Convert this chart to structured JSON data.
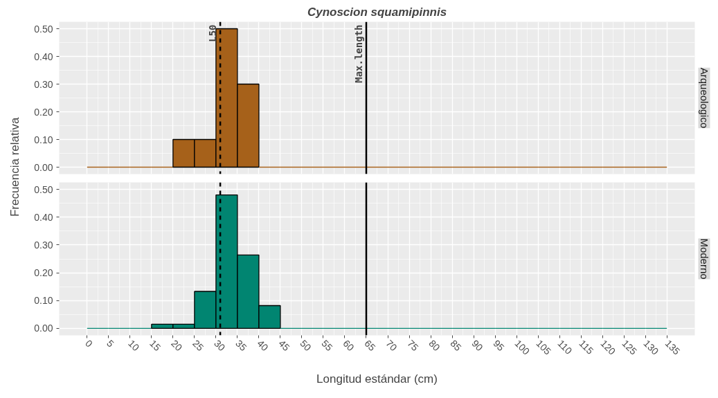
{
  "chart_data": [
    {
      "type": "histogram",
      "title": "Cynoscion squamipinnis",
      "subtitle": "Arqueologico",
      "ylabel": "Frecuencia relativa",
      "color": "#a6611a",
      "bins": [
        0,
        5,
        10,
        15,
        20,
        25,
        30,
        35,
        40,
        45,
        50,
        55,
        60,
        65,
        70,
        75,
        80,
        85,
        90,
        95,
        100,
        105,
        110,
        115,
        120,
        125,
        130,
        135
      ],
      "values": [
        0,
        0,
        0,
        0,
        0.1,
        0.1,
        0.5,
        0.3,
        0,
        0,
        0,
        0,
        0,
        0,
        0,
        0,
        0,
        0,
        0,
        0,
        0,
        0,
        0,
        0,
        0,
        0,
        0
      ],
      "xlim": [
        -6.5,
        141.5
      ],
      "ylim": [
        -0.025,
        0.525
      ],
      "xticks": [
        0,
        5,
        10,
        15,
        20,
        25,
        30,
        35,
        40,
        45,
        50,
        55,
        60,
        65,
        70,
        75,
        80,
        85,
        90,
        95,
        100,
        105,
        110,
        115,
        120,
        125,
        130,
        135
      ],
      "yticks": [
        {
          "value": 0,
          "label": "0.00"
        },
        {
          "value": 0.1,
          "label": "0.10"
        },
        {
          "value": 0.2,
          "label": "0.20"
        },
        {
          "value": 0.3,
          "label": "0.30"
        },
        {
          "value": 0.4,
          "label": "0.40"
        },
        {
          "value": 0.5,
          "label": "0.50"
        }
      ],
      "tick_labels": "y",
      "grid": true,
      "ref_lines": [
        {
          "axis": "x",
          "value": 31,
          "label": "L50",
          "line_style": "dashed"
        },
        {
          "axis": "x",
          "value": 65,
          "label": "Max.length",
          "line_style": "solid"
        }
      ]
    },
    {
      "type": "histogram",
      "subtitle": "Moderno",
      "xlabel": "Longitud estándar (cm)",
      "color": "#018571",
      "bins": [
        0,
        5,
        10,
        15,
        20,
        25,
        30,
        35,
        40,
        45,
        50,
        55,
        60,
        65,
        70,
        75,
        80,
        85,
        90,
        95,
        100,
        105,
        110,
        115,
        120,
        125,
        130,
        135
      ],
      "values": [
        0,
        0,
        0,
        0.015,
        0.015,
        0.133,
        0.48,
        0.264,
        0.082,
        0,
        0,
        0,
        0,
        0,
        0,
        0,
        0,
        0,
        0,
        0,
        0,
        0,
        0,
        0,
        0,
        0,
        0
      ],
      "xlim": [
        -6.5,
        141.5
      ],
      "ylim": [
        -0.025,
        0.525
      ],
      "xticks": [
        0,
        5,
        10,
        15,
        20,
        25,
        30,
        35,
        40,
        45,
        50,
        55,
        60,
        65,
        70,
        75,
        80,
        85,
        90,
        95,
        100,
        105,
        110,
        115,
        120,
        125,
        130,
        135
      ],
      "yticks": [
        {
          "value": 0,
          "label": "0.00"
        },
        {
          "value": 0.1,
          "label": "0.10"
        },
        {
          "value": 0.2,
          "label": "0.20"
        },
        {
          "value": 0.3,
          "label": "0.30"
        },
        {
          "value": 0.4,
          "label": "0.40"
        },
        {
          "value": 0.5,
          "label": "0.50"
        }
      ],
      "grid": true,
      "ref_lines": [
        {
          "axis": "x",
          "value": 31,
          "line_style": "dashed"
        },
        {
          "axis": "x",
          "value": 65,
          "line_style": "solid"
        }
      ]
    }
  ]
}
